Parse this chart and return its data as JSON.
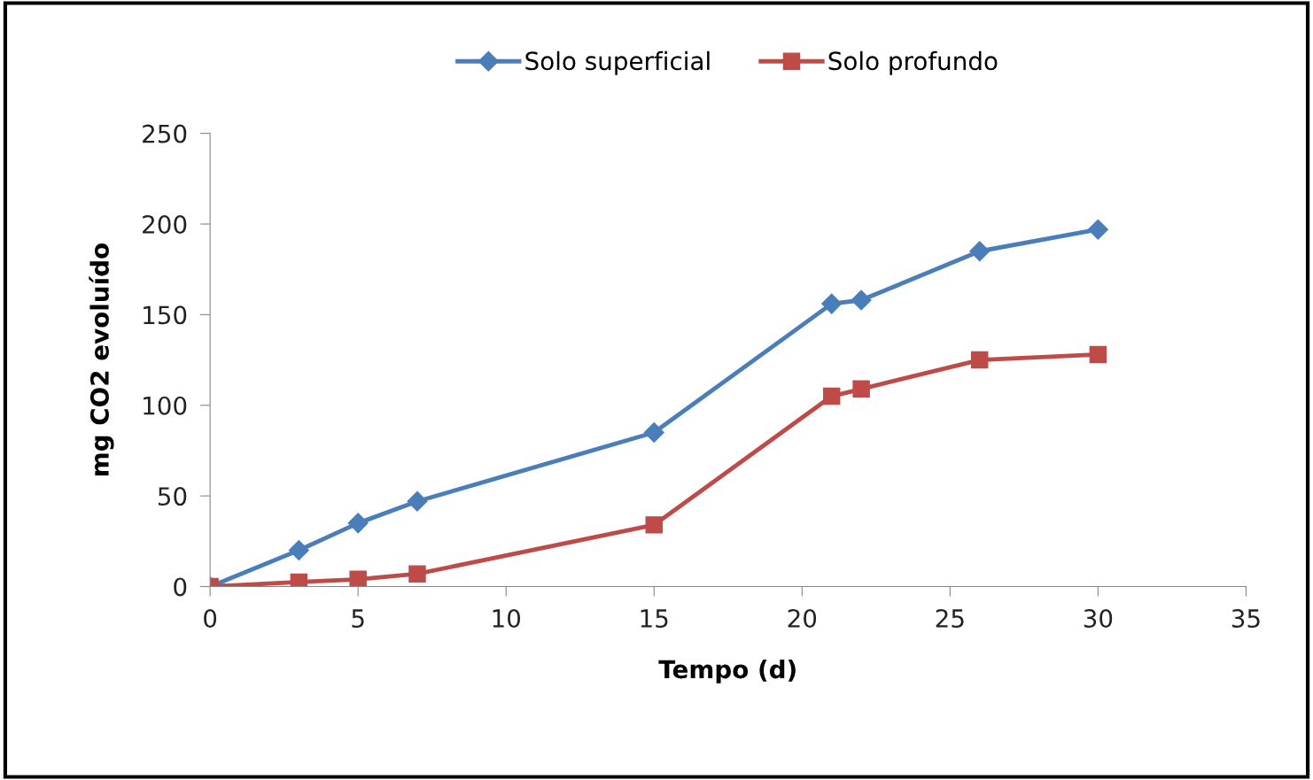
{
  "chart_data": {
    "type": "line",
    "xlabel": "Tempo (d)",
    "ylabel": "mg CO2 evoluído",
    "x": [
      0,
      3,
      5,
      7,
      15,
      21,
      22,
      26,
      30
    ],
    "series": [
      {
        "name": "Solo superficial",
        "color": "#4a7ebb",
        "marker": "diamond",
        "values": [
          0,
          20,
          35,
          47,
          85,
          156,
          158,
          185,
          197
        ]
      },
      {
        "name": "Solo profundo",
        "color": "#be4b48",
        "marker": "square",
        "values": [
          0,
          2.5,
          4,
          7,
          34,
          105,
          109,
          125,
          128
        ]
      }
    ],
    "xlim": [
      0,
      35
    ],
    "xticks": [
      0,
      5,
      10,
      15,
      20,
      25,
      30,
      35
    ],
    "ylim": [
      0,
      250
    ],
    "yticks": [
      0,
      50,
      100,
      150,
      200,
      250
    ],
    "grid": false,
    "legend": "top",
    "line_style": "solid"
  }
}
